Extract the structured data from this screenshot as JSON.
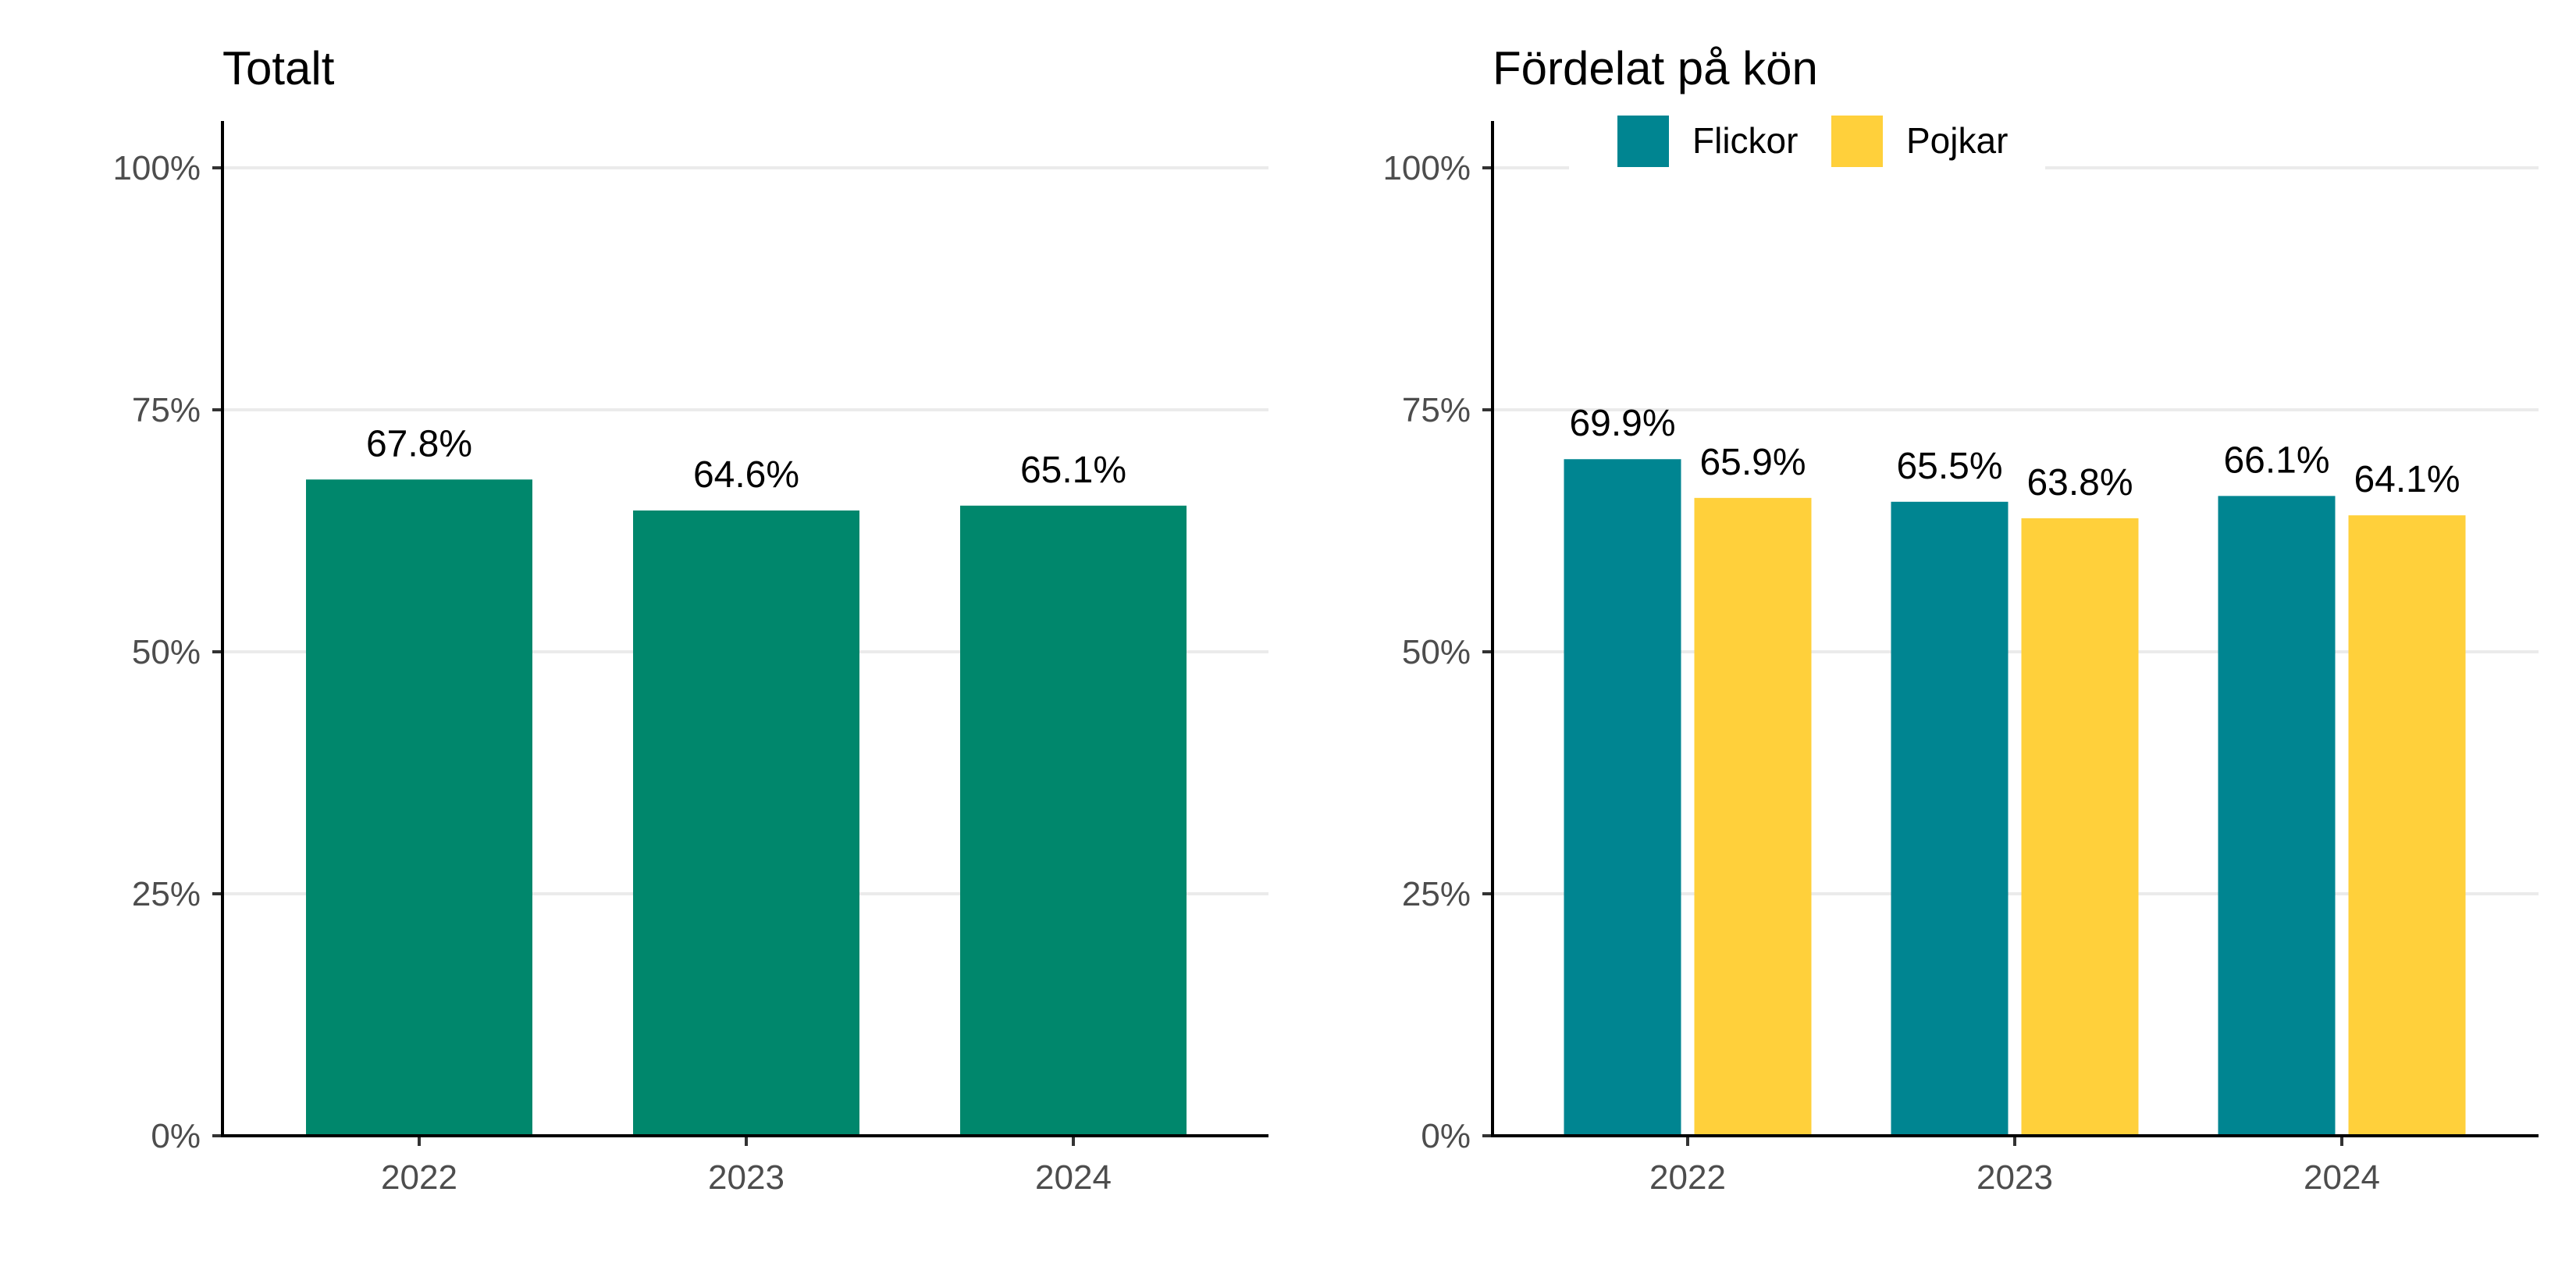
{
  "chart_data": [
    {
      "type": "bar",
      "title": "Totalt",
      "categories": [
        "2022",
        "2023",
        "2024"
      ],
      "series": [
        {
          "values": [
            67.8,
            64.6,
            65.1
          ],
          "labels": [
            "67.8%",
            "64.6%",
            "65.1%"
          ],
          "color": "#00876C"
        }
      ],
      "ylim": [
        0,
        100
      ],
      "yticks": [
        {
          "value": 0,
          "label": "0%"
        },
        {
          "value": 25,
          "label": "25%"
        },
        {
          "value": 50,
          "label": "50%"
        },
        {
          "value": 75,
          "label": "75%"
        },
        {
          "value": 100,
          "label": "100%"
        }
      ],
      "grid": true,
      "legend": "none"
    },
    {
      "type": "bar",
      "title": "Fördelat på kön",
      "categories": [
        "2022",
        "2023",
        "2024"
      ],
      "series": [
        {
          "name": "Flickor",
          "values": [
            69.9,
            65.5,
            66.1
          ],
          "labels": [
            "69.9%",
            "65.5%",
            "66.1%"
          ],
          "color": "#008591"
        },
        {
          "name": "Pojkar",
          "values": [
            65.9,
            63.8,
            64.1
          ],
          "labels": [
            "65.9%",
            "63.8%",
            "64.1%"
          ],
          "color": "#FFD03B"
        }
      ],
      "ylim": [
        0,
        100
      ],
      "yticks": [
        {
          "value": 0,
          "label": "0%"
        },
        {
          "value": 25,
          "label": "25%"
        },
        {
          "value": 50,
          "label": "50%"
        },
        {
          "value": 75,
          "label": "75%"
        },
        {
          "value": 100,
          "label": "100%"
        }
      ],
      "grid": true,
      "legend": "top"
    }
  ]
}
